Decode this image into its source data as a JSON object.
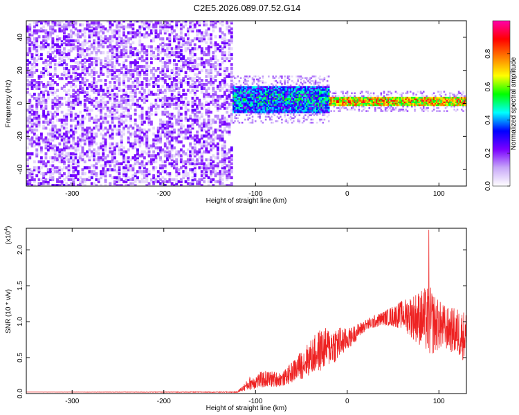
{
  "title": "C2E5.2026.089.07.52.G14",
  "chart_data": [
    {
      "type": "heatmap",
      "xlabel": "Height of straight line (km)",
      "ylabel": "Frequency (Hz)",
      "xlim": [
        -350,
        130
      ],
      "ylim": [
        -50,
        50
      ],
      "xticks": [
        -300,
        -200,
        -100,
        0,
        100
      ],
      "yticks": [
        -40,
        -20,
        0,
        20,
        40
      ],
      "colorbar": {
        "label": "Normalized spectral amplitude",
        "range": [
          0,
          1
        ],
        "ticks": [
          "0.0",
          "0.2",
          "0.4",
          "0.6",
          "0.8"
        ],
        "colors": [
          "#ffffff",
          "#c8a8f8",
          "#7a00ff",
          "#0000ff",
          "#00ffff",
          "#00ff00",
          "#ffff00",
          "#ff8000",
          "#ff0000",
          "#ff00aa"
        ]
      },
      "regions": [
        {
          "x_range": [
            -350,
            -125
          ],
          "freq_range": [
            -50,
            50
          ],
          "amplitude": [
            0.05,
            0.25
          ],
          "description_color": "#7a00ff"
        },
        {
          "x_range": [
            -125,
            -20
          ],
          "freq_center": 2,
          "freq_halfwidth": 8,
          "amplitude": [
            0.2,
            0.6
          ]
        },
        {
          "x_range": [
            -20,
            130
          ],
          "freq_center": 1,
          "freq_halfwidth": 3,
          "amplitude": [
            0.5,
            0.95
          ]
        }
      ]
    },
    {
      "type": "line",
      "xlabel": "Height of straight line (km)",
      "ylabel": "SNR (10 * v/v)",
      "yscale_label": "(x10",
      "yscale_exp": "4",
      "yscale_close": ")",
      "xlim": [
        -350,
        130
      ],
      "ylim": [
        0,
        2.3
      ],
      "xticks": [
        -300,
        -200,
        -100,
        0,
        100
      ],
      "yticks": [
        "0.0",
        "0.5",
        "1.0",
        "1.5",
        "2.0"
      ],
      "color": "#ee2222",
      "envelope": {
        "x": [
          -350,
          -120,
          -105,
          -90,
          -70,
          -50,
          -30,
          -10,
          0,
          20,
          40,
          60,
          80,
          90,
          100,
          110,
          120,
          130
        ],
        "y": [
          0.02,
          0.02,
          0.15,
          0.2,
          0.2,
          0.4,
          0.6,
          0.7,
          0.75,
          0.95,
          1.05,
          1.1,
          1.05,
          1.0,
          0.95,
          0.9,
          0.85,
          0.8
        ],
        "noise": [
          0.0,
          0.005,
          0.1,
          0.12,
          0.1,
          0.2,
          0.3,
          0.25,
          0.15,
          0.08,
          0.1,
          0.2,
          0.4,
          0.5,
          0.35,
          0.3,
          0.35,
          0.35
        ]
      },
      "peak": {
        "x": 89,
        "y": 2.28
      }
    }
  ]
}
